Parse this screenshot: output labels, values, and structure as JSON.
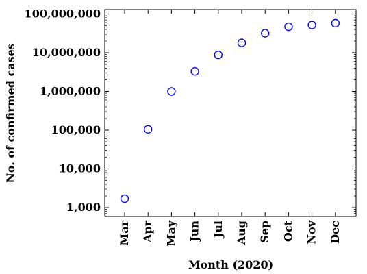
{
  "chart_data": {
    "type": "scatter",
    "xlabel": "Month (2020)",
    "ylabel": "No. of confirmed cases",
    "yscale": "log",
    "ylim": [
      600,
      130000000
    ],
    "categories": [
      "Mar",
      "Apr",
      "May",
      "Jun",
      "Jul",
      "Aug",
      "Sep",
      "Oct",
      "Nov",
      "Dec"
    ],
    "values": [
      1700,
      105000,
      1000000,
      3300000,
      8800000,
      18000000,
      32000000,
      47000000,
      52000000,
      58000000
    ],
    "y_ticks": [
      {
        "value": 1000,
        "label": "1,000"
      },
      {
        "value": 10000,
        "label": "10,000"
      },
      {
        "value": 100000,
        "label": "100,000"
      },
      {
        "value": 1000000,
        "label": "1,000,000"
      },
      {
        "value": 10000000,
        "label": "10,000,000"
      },
      {
        "value": 100000000,
        "label": "100,000,000"
      }
    ],
    "marker_color": "#0000ff",
    "marker": "hollow-circle",
    "grid": false
  }
}
